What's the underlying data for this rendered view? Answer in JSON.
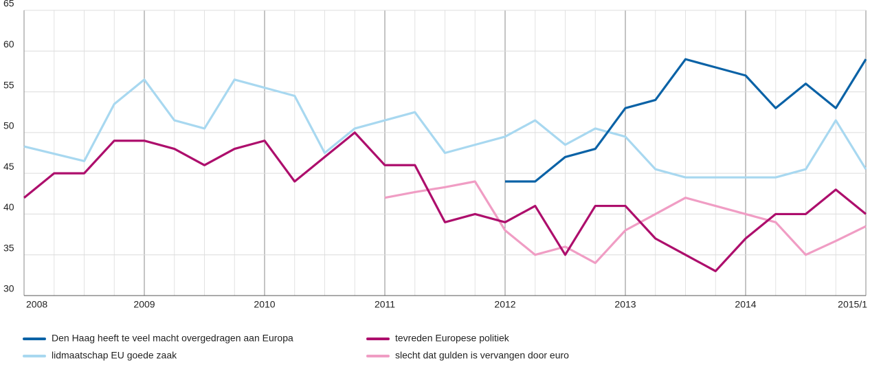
{
  "chart_data": {
    "type": "line",
    "categories": [
      "2008",
      null,
      null,
      null,
      "2009",
      null,
      null,
      null,
      "2010",
      null,
      null,
      null,
      "2011",
      null,
      null,
      null,
      "2012",
      null,
      null,
      null,
      "2013",
      null,
      null,
      null,
      "2014",
      null,
      null,
      null,
      "2015/1"
    ],
    "ylim": [
      30,
      65
    ],
    "yticks": [
      30,
      35,
      40,
      45,
      50,
      55,
      60,
      65
    ],
    "grid": true,
    "legend": "bottom",
    "series": [
      {
        "name": "Den Haag heeft te veel macht overgedragen aan Europa",
        "color": "#0a62a6",
        "values": [
          null,
          null,
          null,
          null,
          null,
          null,
          null,
          null,
          null,
          null,
          null,
          null,
          null,
          null,
          null,
          null,
          44,
          44,
          47,
          48,
          53,
          54,
          59,
          58,
          57,
          53,
          56,
          53,
          59
        ]
      },
      {
        "name": "tevreden Europese politiek",
        "color": "#ad0e6c",
        "values": [
          42,
          45,
          45,
          49,
          49,
          48,
          46,
          48,
          49,
          44,
          47,
          50,
          46,
          46,
          39,
          40,
          39,
          41,
          35,
          41,
          41,
          37,
          35,
          33,
          37,
          40,
          40,
          43,
          40
        ]
      },
      {
        "name": "lidmaatschap EU goede zaak",
        "color": "#a8d8f0",
        "values": [
          48.3,
          47.4,
          46.5,
          53.5,
          56.5,
          51.5,
          50.5,
          56.5,
          55.5,
          54.5,
          47.5,
          50.5,
          51.5,
          52.5,
          47.5,
          48.5,
          49.5,
          51.5,
          48.5,
          50.5,
          49.5,
          45.5,
          44.5,
          44.5,
          44.5,
          44.5,
          45.5,
          51.5,
          45.5
        ]
      },
      {
        "name": "slecht dat gulden is vervangen door euro",
        "color": "#f09dc4",
        "values": [
          null,
          null,
          null,
          null,
          null,
          null,
          null,
          null,
          null,
          null,
          null,
          null,
          42,
          42.7,
          43.3,
          44,
          38,
          35,
          36,
          34,
          38,
          40,
          42,
          41,
          40,
          39,
          35,
          36.7,
          38.5
        ]
      }
    ]
  }
}
